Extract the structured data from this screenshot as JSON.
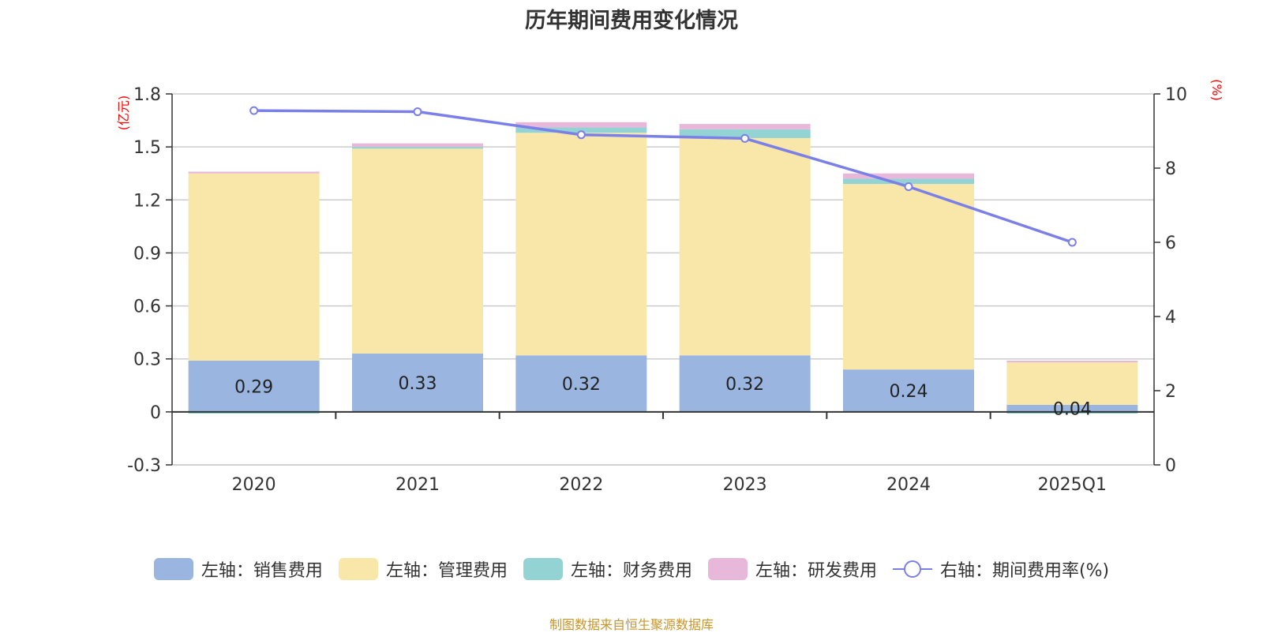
{
  "chart_data": {
    "type": "bar",
    "title": "历年期间费用变化情况",
    "categories": [
      "2020",
      "2021",
      "2022",
      "2023",
      "2024",
      "2025Q1"
    ],
    "stacked": true,
    "left_axis": {
      "unit_label": "(亿元)",
      "ylim": [
        -0.3,
        1.8
      ],
      "ticks": [
        -0.3,
        0,
        0.3,
        0.6,
        0.9,
        1.2,
        1.5,
        1.8
      ]
    },
    "right_axis": {
      "unit_label": "(%)",
      "ylim": [
        0,
        10
      ],
      "ticks": [
        0,
        2,
        4,
        6,
        8,
        10
      ]
    },
    "series": [
      {
        "name": "左轴：销售费用",
        "axis": "left",
        "type": "bar",
        "color": "#9ab6e0",
        "values": [
          0.29,
          0.33,
          0.32,
          0.32,
          0.24,
          0.04
        ],
        "labels": [
          "0.29",
          "0.33",
          "0.32",
          "0.32",
          "0.24",
          "0.04"
        ]
      },
      {
        "name": "左轴：管理费用",
        "axis": "left",
        "type": "bar",
        "color": "#f8e7a8",
        "values": [
          1.06,
          1.16,
          1.26,
          1.23,
          1.05,
          0.24
        ]
      },
      {
        "name": "左轴：财务费用",
        "axis": "left",
        "type": "bar",
        "color": "#93d3d3",
        "values": [
          -0.01,
          0.01,
          0.03,
          0.05,
          0.03,
          -0.01
        ]
      },
      {
        "name": "左轴：研发费用",
        "axis": "left",
        "type": "bar",
        "color": "#e8b8da",
        "values": [
          0.01,
          0.02,
          0.03,
          0.03,
          0.03,
          0.01
        ]
      },
      {
        "name": "右轴：期间费用率(%)",
        "axis": "right",
        "type": "line",
        "color": "#7b7fe8",
        "values": [
          9.55,
          9.52,
          8.9,
          8.8,
          7.5,
          6.0
        ]
      }
    ],
    "grid": true,
    "legend_position": "bottom"
  },
  "source_note": "制图数据来自恒生聚源数据库",
  "colors": {
    "axis_unit": "#ff0000",
    "source_note": "#c8952c",
    "grid": "#cccccc",
    "axis": "#333333"
  }
}
